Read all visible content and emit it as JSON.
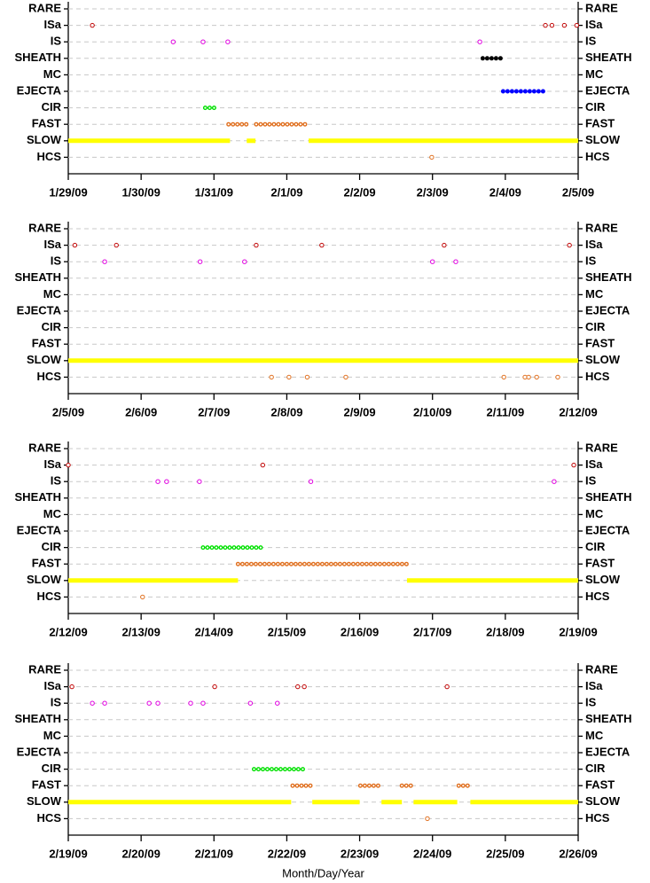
{
  "chart_data": [
    {
      "type": "scatter",
      "categories": [
        "RARE",
        "ISa",
        "IS",
        "SHEATH",
        "MC",
        "EJECTA",
        "CIR",
        "FAST",
        "SLOW",
        "HCS"
      ],
      "xlim": [
        29,
        36
      ],
      "xticks": [
        {
          "value": 29,
          "label": "1/29/09"
        },
        {
          "value": 30,
          "label": "1/30/09"
        },
        {
          "value": 31,
          "label": "1/31/09"
        },
        {
          "value": 32,
          "label": "2/1/09"
        },
        {
          "value": 33,
          "label": "2/2/09"
        },
        {
          "value": 34,
          "label": "2/3/09"
        },
        {
          "value": 35,
          "label": "2/4/09"
        },
        {
          "value": 36,
          "label": "2/5/09"
        }
      ],
      "grid": true,
      "series": [
        {
          "name": "ISa",
          "color": "#c00000",
          "marker": "open",
          "x": [
            29.33,
            35.55,
            35.64,
            35.81,
            35.98
          ]
        },
        {
          "name": "IS",
          "color": "#e000e0",
          "marker": "open",
          "x": [
            30.44,
            30.85,
            31.19,
            34.65
          ]
        },
        {
          "name": "SHEATH",
          "color": "#000000",
          "marker": "filled",
          "spans": [
            [
              34.69,
              34.96
            ]
          ]
        },
        {
          "name": "EJECTA",
          "color": "#0000ff",
          "marker": "filled",
          "spans": [
            [
              34.97,
              35.53
            ]
          ]
        },
        {
          "name": "CIR",
          "color": "#00e000",
          "marker": "open",
          "spans": [
            [
              30.88,
              31.06
            ]
          ]
        },
        {
          "name": "FAST",
          "color": "#e07020",
          "marker": "open",
          "spans": [
            [
              31.2,
              31.45
            ],
            [
              31.58,
              32.3
            ]
          ]
        },
        {
          "name": "SLOW",
          "color": "#ffff00",
          "marker": "solid",
          "spans": [
            [
              29,
              31.22
            ],
            [
              31.45,
              31.57
            ],
            [
              32.3,
              36
            ]
          ]
        },
        {
          "name": "HCS",
          "color": "#e07020",
          "marker": "open",
          "x": [
            33.99
          ]
        }
      ]
    },
    {
      "type": "scatter",
      "categories": [
        "RARE",
        "ISa",
        "IS",
        "SHEATH",
        "MC",
        "EJECTA",
        "CIR",
        "FAST",
        "SLOW",
        "HCS"
      ],
      "xlim": [
        36,
        43
      ],
      "xticks": [
        {
          "value": 36,
          "label": "2/5/09"
        },
        {
          "value": 37,
          "label": "2/6/09"
        },
        {
          "value": 38,
          "label": "2/7/09"
        },
        {
          "value": 39,
          "label": "2/8/09"
        },
        {
          "value": 40,
          "label": "2/9/09"
        },
        {
          "value": 41,
          "label": "2/10/09"
        },
        {
          "value": 42,
          "label": "2/11/09"
        },
        {
          "value": 43,
          "label": "2/12/09"
        }
      ],
      "grid": true,
      "series": [
        {
          "name": "ISa",
          "color": "#c00000",
          "marker": "open",
          "x": [
            36.09,
            36.66,
            38.58,
            39.48,
            41.16,
            42.88
          ]
        },
        {
          "name": "IS",
          "color": "#e000e0",
          "marker": "open",
          "x": [
            36.5,
            37.81,
            38.42,
            41.0,
            41.32
          ]
        },
        {
          "name": "SLOW",
          "color": "#ffff00",
          "marker": "solid",
          "spans": [
            [
              36,
              43
            ]
          ]
        },
        {
          "name": "HCS",
          "color": "#e07020",
          "marker": "open",
          "x": [
            38.79,
            39.03,
            39.28,
            39.81,
            41.98,
            42.27,
            42.32,
            42.43,
            42.72
          ]
        }
      ]
    },
    {
      "type": "scatter",
      "categories": [
        "RARE",
        "ISa",
        "IS",
        "SHEATH",
        "MC",
        "EJECTA",
        "CIR",
        "FAST",
        "SLOW",
        "HCS"
      ],
      "xlim": [
        43,
        50
      ],
      "xticks": [
        {
          "value": 43,
          "label": "2/12/09"
        },
        {
          "value": 44,
          "label": "2/13/09"
        },
        {
          "value": 45,
          "label": "2/14/09"
        },
        {
          "value": 46,
          "label": "2/15/09"
        },
        {
          "value": 47,
          "label": "2/16/09"
        },
        {
          "value": 48,
          "label": "2/17/09"
        },
        {
          "value": 49,
          "label": "2/18/09"
        },
        {
          "value": 50,
          "label": "2/19/09"
        }
      ],
      "grid": true,
      "series": [
        {
          "name": "ISa",
          "color": "#c00000",
          "marker": "open",
          "x": [
            43.0,
            45.67,
            49.94
          ]
        },
        {
          "name": "IS",
          "color": "#e000e0",
          "marker": "open",
          "x": [
            44.23,
            44.35,
            44.8,
            46.33,
            49.67
          ]
        },
        {
          "name": "CIR",
          "color": "#00e000",
          "marker": "open",
          "spans": [
            [
              44.85,
              45.66
            ]
          ]
        },
        {
          "name": "FAST",
          "color": "#e07020",
          "marker": "open",
          "spans": [
            [
              45.33,
              47.65
            ]
          ]
        },
        {
          "name": "SLOW",
          "color": "#ffff00",
          "marker": "solid",
          "spans": [
            [
              43,
              45.33
            ],
            [
              47.65,
              50
            ]
          ]
        },
        {
          "name": "HCS",
          "color": "#e07020",
          "marker": "open",
          "x": [
            44.02
          ]
        }
      ]
    },
    {
      "type": "scatter",
      "categories": [
        "RARE",
        "ISa",
        "IS",
        "SHEATH",
        "MC",
        "EJECTA",
        "CIR",
        "FAST",
        "SLOW",
        "HCS"
      ],
      "xlim": [
        50,
        57
      ],
      "xticks": [
        {
          "value": 50,
          "label": "2/19/09"
        },
        {
          "value": 51,
          "label": "2/20/09"
        },
        {
          "value": 52,
          "label": "2/21/09"
        },
        {
          "value": 53,
          "label": "2/22/09"
        },
        {
          "value": 54,
          "label": "2/23/09"
        },
        {
          "value": 55,
          "label": "2/24/09"
        },
        {
          "value": 56,
          "label": "2/25/09"
        },
        {
          "value": 57,
          "label": "2/26/09"
        }
      ],
      "xlabel": "Month/Day/Year",
      "grid": true,
      "series": [
        {
          "name": "ISa",
          "color": "#c00000",
          "marker": "open",
          "x": [
            50.05,
            52.01,
            53.15,
            53.24,
            55.2
          ]
        },
        {
          "name": "IS",
          "color": "#e000e0",
          "marker": "open",
          "x": [
            50.33,
            50.5,
            51.11,
            51.23,
            51.68,
            51.85,
            52.5,
            52.87
          ]
        },
        {
          "name": "CIR",
          "color": "#00e000",
          "marker": "open",
          "spans": [
            [
              52.55,
              53.22
            ]
          ]
        },
        {
          "name": "FAST",
          "color": "#e07020",
          "marker": "open",
          "spans": [
            [
              53.08,
              53.34
            ],
            [
              54.01,
              54.3
            ],
            [
              54.58,
              54.74
            ],
            [
              55.36,
              55.51
            ]
          ]
        },
        {
          "name": "SLOW",
          "color": "#ffff00",
          "marker": "solid",
          "spans": [
            [
              50,
              53.06
            ],
            [
              53.35,
              54.0
            ],
            [
              54.3,
              54.58
            ],
            [
              54.74,
              55.34
            ],
            [
              55.52,
              57
            ]
          ]
        },
        {
          "name": "HCS",
          "color": "#e07020",
          "marker": "open",
          "x": [
            54.93
          ]
        }
      ]
    }
  ]
}
